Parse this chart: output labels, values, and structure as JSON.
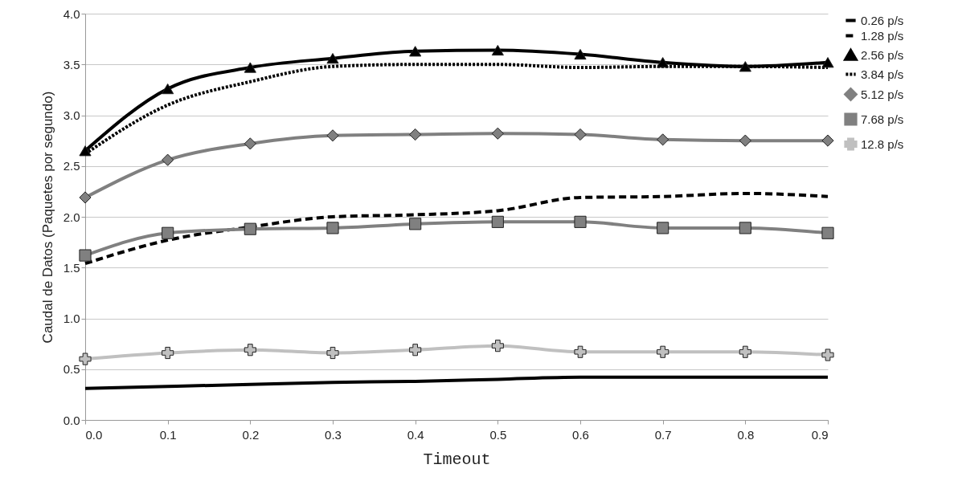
{
  "chart_data": {
    "type": "line",
    "xlabel": "Timeout",
    "ylabel": "Caudal de Datos (Paquetes por segundo)",
    "x": [
      0.0,
      0.1,
      0.2,
      0.3,
      0.4,
      0.5,
      0.6,
      0.7,
      0.8,
      0.9
    ],
    "xlim": [
      0.0,
      0.9
    ],
    "xticks": [
      {
        "value": 0,
        "label": "0.0"
      },
      0.1,
      0.2,
      0.3,
      0.4,
      0.5,
      0.6,
      0.7,
      0.8,
      0.9
    ],
    "ylim": [
      0,
      4
    ],
    "yticks": [
      {
        "value": 0,
        "label": "0.0"
      },
      0.5,
      {
        "value": 1,
        "label": "1.0"
      },
      1.5,
      {
        "value": 2,
        "label": "2.0"
      },
      2.5,
      {
        "value": 3,
        "label": "3.0"
      },
      3.5,
      {
        "value": 4,
        "label": "4.0"
      }
    ],
    "grid": "y",
    "legend": "right",
    "series": [
      {
        "name": "0.26 p/s",
        "color": "#000000",
        "marker": "none",
        "line_style": "solid",
        "values": [
          0.31,
          0.33,
          0.35,
          0.37,
          0.38,
          0.4,
          0.42,
          0.42,
          0.42,
          0.42
        ]
      },
      {
        "name": "1.28 p/s",
        "color": "#000000",
        "marker": "none",
        "line_style": "dashed",
        "values": [
          1.54,
          1.77,
          1.9,
          2.0,
          2.02,
          2.06,
          2.19,
          2.2,
          2.23,
          2.2
        ]
      },
      {
        "name": "2.56 p/s",
        "color": "#000000",
        "marker": "triangle",
        "line_style": "solid",
        "values": [
          2.65,
          3.26,
          3.47,
          3.56,
          3.63,
          3.64,
          3.6,
          3.52,
          3.48,
          3.52
        ]
      },
      {
        "name": "3.84 p/s",
        "color": "#000000",
        "marker": "none",
        "line_style": "dotted",
        "values": [
          2.62,
          3.1,
          3.33,
          3.48,
          3.5,
          3.5,
          3.47,
          3.48,
          3.48,
          3.47
        ]
      },
      {
        "name": "5.12 p/s",
        "color": "#808080",
        "marker": "diamond",
        "line_style": "solid",
        "values": [
          2.19,
          2.56,
          2.72,
          2.8,
          2.81,
          2.82,
          2.81,
          2.76,
          2.75,
          2.75
        ]
      },
      {
        "name": "7.68 p/s",
        "color": "#808080",
        "marker": "square",
        "line_style": "solid",
        "values": [
          1.62,
          1.84,
          1.88,
          1.89,
          1.93,
          1.95,
          1.95,
          1.89,
          1.89,
          1.84
        ]
      },
      {
        "name": "12.8 p/s",
        "color": "#c0c0c0",
        "marker": "cross",
        "line_style": "solid",
        "values": [
          0.6,
          0.66,
          0.69,
          0.66,
          0.69,
          0.73,
          0.67,
          0.67,
          0.67,
          0.64
        ]
      }
    ]
  }
}
